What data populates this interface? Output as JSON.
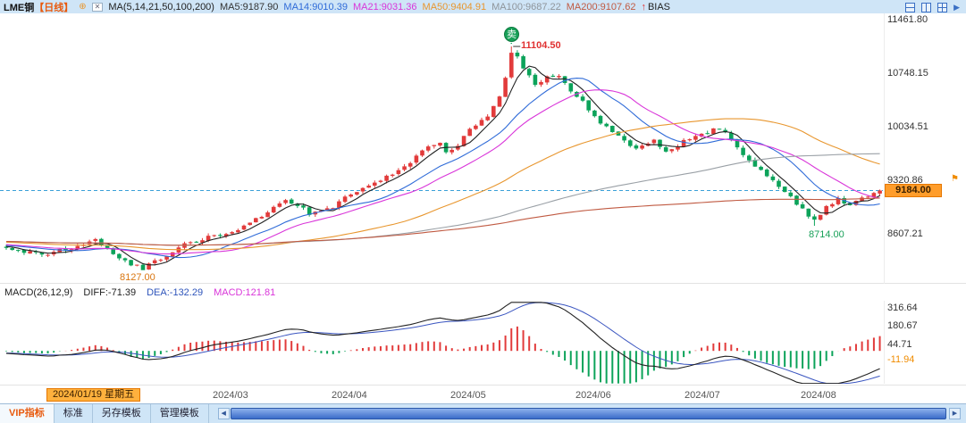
{
  "header": {
    "symbol": "LME铜",
    "period": "【日线】",
    "ma_settings": "MA(5,14,21,50,100,200)",
    "ma5": "MA5:9187.90",
    "ma14": "MA14:9010.39",
    "ma21": "MA21:9031.36",
    "ma50": "MA50:9404.91",
    "ma100": "MA100:9687.22",
    "ma200": "MA200:9107.62",
    "bias": "BIAS"
  },
  "main_chart": {
    "y_labels": [
      "11461.80",
      "10748.15",
      "10034.51",
      "9320.86",
      "8607.21"
    ],
    "current_price": "9184.00",
    "peak_label": "11104.50",
    "low_label_1": "8127.00",
    "low_label_2": "8714.00",
    "sell_badge": "卖"
  },
  "macd": {
    "title": "MACD(26,12,9)",
    "diff": "DIFF:-71.39",
    "dea": "DEA:-132.29",
    "macd": "MACD:121.81",
    "y_labels": [
      "316.64",
      "180.67",
      "44.71"
    ],
    "current_value": "-11.94"
  },
  "x_axis": {
    "date_label": "2024/01/19 星期五",
    "months": [
      "2024/03",
      "2024/04",
      "2024/05",
      "2024/06",
      "2024/07",
      "2024/08"
    ]
  },
  "footer": {
    "tabs": [
      "VIP指标",
      "标准",
      "另存模板",
      "管理模板"
    ]
  },
  "colors": {
    "up": "#e23b3b",
    "down": "#0ca35a",
    "ma5": "#222222",
    "ma14": "#2f6bd8",
    "ma21": "#d935d9",
    "ma50": "#e8962e",
    "ma100": "#9aa0a6",
    "ma200": "#c05a42",
    "diff_line": "#222222",
    "dea_line": "#3a55c0",
    "dashed_line": "#3aa0d8",
    "accent_orange": "#ff9d2b"
  },
  "chart_data": {
    "type": "candlestick",
    "title": "LME Copper daily (LME铜 日线) with MA(5,14,21,50,100,200) overlays and MACD(26,12,9) subchart",
    "days": 148,
    "x_start_label": "2024/01/19",
    "x_tick_labels": [
      "2024/03",
      "2024/04",
      "2024/05",
      "2024/06",
      "2024/07",
      "2024/08"
    ],
    "y_axis_values": [
      11461.8,
      10748.15,
      10034.51,
      9320.86,
      8607.21
    ],
    "key_points": {
      "high": 11104.5,
      "low_feb": 8127.0,
      "low_aug": 8714.0,
      "last": 9184.0
    },
    "special_days": {
      "peak_day": 85,
      "low1_day": 23,
      "low2_day": 136
    },
    "close_anchors": [
      [
        0,
        8420
      ],
      [
        3,
        8370
      ],
      [
        6,
        8320
      ],
      [
        9,
        8380
      ],
      [
        12,
        8450
      ],
      [
        15,
        8520
      ],
      [
        18,
        8330
      ],
      [
        21,
        8200
      ],
      [
        23,
        8140
      ],
      [
        26,
        8280
      ],
      [
        30,
        8460
      ],
      [
        34,
        8560
      ],
      [
        38,
        8640
      ],
      [
        41,
        8760
      ],
      [
        44,
        8900
      ],
      [
        47,
        9060
      ],
      [
        49,
        8980
      ],
      [
        51,
        8880
      ],
      [
        53,
        8920
      ],
      [
        55,
        8960
      ],
      [
        58,
        9150
      ],
      [
        61,
        9260
      ],
      [
        64,
        9360
      ],
      [
        66,
        9480
      ],
      [
        68,
        9560
      ],
      [
        71,
        9760
      ],
      [
        73,
        9830
      ],
      [
        74,
        9700
      ],
      [
        76,
        9800
      ],
      [
        78,
        10010
      ],
      [
        81,
        10160
      ],
      [
        83,
        10420
      ],
      [
        84,
        10700
      ],
      [
        85,
        11020
      ],
      [
        86,
        10950
      ],
      [
        87,
        10820
      ],
      [
        89,
        10600
      ],
      [
        91,
        10690
      ],
      [
        93,
        10730
      ],
      [
        95,
        10520
      ],
      [
        97,
        10360
      ],
      [
        99,
        10160
      ],
      [
        102,
        9990
      ],
      [
        104,
        9860
      ],
      [
        106,
        9730
      ],
      [
        109,
        9860
      ],
      [
        111,
        9710
      ],
      [
        113,
        9790
      ],
      [
        115,
        9890
      ],
      [
        118,
        9960
      ],
      [
        120,
        10020
      ],
      [
        122,
        9860
      ],
      [
        124,
        9660
      ],
      [
        127,
        9460
      ],
      [
        129,
        9310
      ],
      [
        131,
        9160
      ],
      [
        133,
        9010
      ],
      [
        135,
        8860
      ],
      [
        136,
        8790
      ],
      [
        138,
        8960
      ],
      [
        140,
        9060
      ],
      [
        142,
        8990
      ],
      [
        144,
        9090
      ],
      [
        146,
        9140
      ],
      [
        147,
        9184
      ]
    ],
    "ma_last": {
      "ma5": 9187.9,
      "ma14": 9010.39,
      "ma21": 9031.36,
      "ma50": 9404.91,
      "ma100": 9687.22,
      "ma200": 9107.62
    },
    "macd_axis_values": [
      316.64,
      180.67,
      44.71
    ],
    "macd_last": {
      "diff": -71.39,
      "dea": -132.29,
      "macd": 121.81,
      "marker": -11.94
    },
    "signal": {
      "type": "sell",
      "label": "卖",
      "price": 11104.5
    }
  }
}
